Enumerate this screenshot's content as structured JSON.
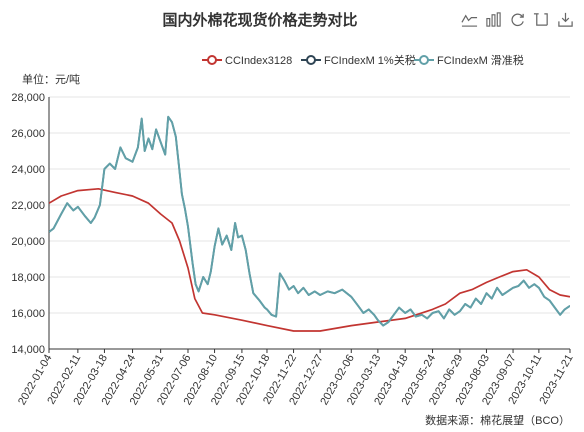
{
  "toolbox": [
    {
      "name": "line-chart-icon"
    },
    {
      "name": "bar-chart-icon"
    },
    {
      "name": "restore-icon"
    },
    {
      "name": "data-view-icon"
    },
    {
      "name": "save-image-icon"
    }
  ],
  "colors": {
    "s1": "#c23531",
    "s2": "#2f4554",
    "s3": "#61a0a8",
    "grid": "#e8e8e8"
  },
  "chart_data": {
    "type": "line",
    "title": "国内外棉花现货价格走势对比",
    "unit_label": "单位：元/吨",
    "source": "数据来源：棉花展望（BCO）",
    "legend_position": "top-right",
    "grid": true,
    "xlabel": "",
    "ylabel": "",
    "ylim": [
      14000,
      28000
    ],
    "y_ticks": [
      14000,
      16000,
      18000,
      20000,
      22000,
      24000,
      26000,
      28000
    ],
    "y_tick_labels": [
      "14,000",
      "16,000",
      "18,000",
      "20,000",
      "22,000",
      "24,000",
      "26,000",
      "28,000"
    ],
    "x_range": [
      "2022-01-04",
      "2023-11-21"
    ],
    "x_ticks": [
      "2022-01-04",
      "2022-02-11",
      "2022-03-18",
      "2022-04-24",
      "2022-05-31",
      "2022-07-06",
      "2022-08-10",
      "2022-09-15",
      "2022-10-18",
      "2022-11-22",
      "2022-12-27",
      "2023-02-06",
      "2023-03-13",
      "2023-04-18",
      "2023-05-24",
      "2023-06-29",
      "2023-08-03",
      "2023-09-07",
      "2023-10-11",
      "2023-11-21"
    ],
    "series": [
      {
        "name": "CCIndex3128",
        "color": "#c23531",
        "points": [
          [
            "2022-01-04",
            22100
          ],
          [
            "2022-01-20",
            22500
          ],
          [
            "2022-02-11",
            22800
          ],
          [
            "2022-03-10",
            22900
          ],
          [
            "2022-04-01",
            22700
          ],
          [
            "2022-04-24",
            22500
          ],
          [
            "2022-05-15",
            22100
          ],
          [
            "2022-05-31",
            21500
          ],
          [
            "2022-06-15",
            21000
          ],
          [
            "2022-06-25",
            20000
          ],
          [
            "2022-07-06",
            18500
          ],
          [
            "2022-07-15",
            16800
          ],
          [
            "2022-07-25",
            16000
          ],
          [
            "2022-08-10",
            15900
          ],
          [
            "2022-09-15",
            15600
          ],
          [
            "2022-10-18",
            15300
          ],
          [
            "2022-11-22",
            15000
          ],
          [
            "2022-12-27",
            15000
          ],
          [
            "2023-02-06",
            15300
          ],
          [
            "2023-03-13",
            15500
          ],
          [
            "2023-04-18",
            15700
          ],
          [
            "2023-05-24",
            16200
          ],
          [
            "2023-06-10",
            16500
          ],
          [
            "2023-06-29",
            17100
          ],
          [
            "2023-07-15",
            17300
          ],
          [
            "2023-08-03",
            17700
          ],
          [
            "2023-08-20",
            18000
          ],
          [
            "2023-09-07",
            18300
          ],
          [
            "2023-09-25",
            18400
          ],
          [
            "2023-10-11",
            18000
          ],
          [
            "2023-10-25",
            17300
          ],
          [
            "2023-11-08",
            17000
          ],
          [
            "2023-11-21",
            16900
          ]
        ]
      },
      {
        "name": "FCIndexM 1%关税",
        "color": "#2f4554",
        "points": [
          [
            "2022-01-04",
            20500
          ],
          [
            "2022-01-10",
            20700
          ],
          [
            "2022-01-20",
            21500
          ],
          [
            "2022-01-28",
            22100
          ],
          [
            "2022-02-05",
            21700
          ],
          [
            "2022-02-11",
            21900
          ],
          [
            "2022-02-20",
            21400
          ],
          [
            "2022-02-28",
            21000
          ],
          [
            "2022-03-05",
            21300
          ],
          [
            "2022-03-12",
            22000
          ],
          [
            "2022-03-18",
            24000
          ],
          [
            "2022-03-25",
            24300
          ],
          [
            "2022-04-01",
            24000
          ],
          [
            "2022-04-08",
            25200
          ],
          [
            "2022-04-15",
            24600
          ],
          [
            "2022-04-24",
            24400
          ],
          [
            "2022-05-01",
            25200
          ],
          [
            "2022-05-06",
            26800
          ],
          [
            "2022-05-10",
            25000
          ],
          [
            "2022-05-15",
            25700
          ],
          [
            "2022-05-20",
            25100
          ],
          [
            "2022-05-25",
            26200
          ],
          [
            "2022-05-31",
            25500
          ],
          [
            "2022-06-06",
            24800
          ],
          [
            "2022-06-10",
            26900
          ],
          [
            "2022-06-15",
            26600
          ],
          [
            "2022-06-20",
            25800
          ],
          [
            "2022-06-24",
            24200
          ],
          [
            "2022-06-28",
            22600
          ],
          [
            "2022-07-02",
            21800
          ],
          [
            "2022-07-06",
            20800
          ],
          [
            "2022-07-12",
            18800
          ],
          [
            "2022-07-16",
            17600
          ],
          [
            "2022-07-20",
            17200
          ],
          [
            "2022-07-26",
            18000
          ],
          [
            "2022-08-01",
            17600
          ],
          [
            "2022-08-05",
            18300
          ],
          [
            "2022-08-10",
            19700
          ],
          [
            "2022-08-15",
            20700
          ],
          [
            "2022-08-20",
            19800
          ],
          [
            "2022-08-26",
            20300
          ],
          [
            "2022-09-01",
            19500
          ],
          [
            "2022-09-06",
            21000
          ],
          [
            "2022-09-10",
            20200
          ],
          [
            "2022-09-15",
            20300
          ],
          [
            "2022-09-20",
            19500
          ],
          [
            "2022-09-25",
            18200
          ],
          [
            "2022-09-30",
            17100
          ],
          [
            "2022-10-08",
            16700
          ],
          [
            "2022-10-15",
            16300
          ],
          [
            "2022-10-18",
            16200
          ],
          [
            "2022-10-24",
            15900
          ],
          [
            "2022-10-30",
            15800
          ],
          [
            "2022-11-04",
            18200
          ],
          [
            "2022-11-10",
            17800
          ],
          [
            "2022-11-16",
            17300
          ],
          [
            "2022-11-22",
            17500
          ],
          [
            "2022-11-28",
            17100
          ],
          [
            "2022-12-05",
            17400
          ],
          [
            "2022-12-12",
            17000
          ],
          [
            "2022-12-20",
            17200
          ],
          [
            "2022-12-27",
            17000
          ],
          [
            "2023-01-06",
            17200
          ],
          [
            "2023-01-15",
            17100
          ],
          [
            "2023-01-25",
            17300
          ],
          [
            "2023-02-06",
            16900
          ],
          [
            "2023-02-15",
            16400
          ],
          [
            "2023-02-22",
            16000
          ],
          [
            "2023-03-01",
            16200
          ],
          [
            "2023-03-08",
            15900
          ],
          [
            "2023-03-13",
            15600
          ],
          [
            "2023-03-20",
            15300
          ],
          [
            "2023-03-27",
            15500
          ],
          [
            "2023-04-03",
            15900
          ],
          [
            "2023-04-10",
            16300
          ],
          [
            "2023-04-18",
            16000
          ],
          [
            "2023-04-25",
            16200
          ],
          [
            "2023-05-02",
            15800
          ],
          [
            "2023-05-10",
            15900
          ],
          [
            "2023-05-17",
            15700
          ],
          [
            "2023-05-24",
            16000
          ],
          [
            "2023-06-01",
            16100
          ],
          [
            "2023-06-08",
            15700
          ],
          [
            "2023-06-15",
            16200
          ],
          [
            "2023-06-22",
            15900
          ],
          [
            "2023-06-29",
            16100
          ],
          [
            "2023-07-06",
            16500
          ],
          [
            "2023-07-13",
            16300
          ],
          [
            "2023-07-20",
            16800
          ],
          [
            "2023-07-27",
            16500
          ],
          [
            "2023-08-03",
            17100
          ],
          [
            "2023-08-10",
            16800
          ],
          [
            "2023-08-17",
            17400
          ],
          [
            "2023-08-24",
            17000
          ],
          [
            "2023-08-31",
            17200
          ],
          [
            "2023-09-07",
            17400
          ],
          [
            "2023-09-14",
            17500
          ],
          [
            "2023-09-21",
            17800
          ],
          [
            "2023-09-28",
            17400
          ],
          [
            "2023-10-05",
            17600
          ],
          [
            "2023-10-11",
            17400
          ],
          [
            "2023-10-18",
            16900
          ],
          [
            "2023-10-25",
            16700
          ],
          [
            "2023-11-01",
            16300
          ],
          [
            "2023-11-08",
            15900
          ],
          [
            "2023-11-14",
            16200
          ],
          [
            "2023-11-21",
            16400
          ]
        ]
      },
      {
        "name": "FCIndexM 滑准税",
        "color": "#61a0a8",
        "points": [
          [
            "2022-01-04",
            20500
          ],
          [
            "2022-01-10",
            20700
          ],
          [
            "2022-01-20",
            21500
          ],
          [
            "2022-01-28",
            22100
          ],
          [
            "2022-02-05",
            21700
          ],
          [
            "2022-02-11",
            21900
          ],
          [
            "2022-02-20",
            21400
          ],
          [
            "2022-02-28",
            21000
          ],
          [
            "2022-03-05",
            21300
          ],
          [
            "2022-03-12",
            22000
          ],
          [
            "2022-03-18",
            24000
          ],
          [
            "2022-03-25",
            24300
          ],
          [
            "2022-04-01",
            24000
          ],
          [
            "2022-04-08",
            25200
          ],
          [
            "2022-04-15",
            24600
          ],
          [
            "2022-04-24",
            24400
          ],
          [
            "2022-05-01",
            25200
          ],
          [
            "2022-05-06",
            26800
          ],
          [
            "2022-05-10",
            25000
          ],
          [
            "2022-05-15",
            25700
          ],
          [
            "2022-05-20",
            25100
          ],
          [
            "2022-05-25",
            26200
          ],
          [
            "2022-05-31",
            25500
          ],
          [
            "2022-06-06",
            24800
          ],
          [
            "2022-06-10",
            26900
          ],
          [
            "2022-06-15",
            26600
          ],
          [
            "2022-06-20",
            25800
          ],
          [
            "2022-06-24",
            24200
          ],
          [
            "2022-06-28",
            22600
          ],
          [
            "2022-07-02",
            21800
          ],
          [
            "2022-07-06",
            20800
          ],
          [
            "2022-07-12",
            18800
          ],
          [
            "2022-07-16",
            17600
          ],
          [
            "2022-07-20",
            17200
          ],
          [
            "2022-07-26",
            18000
          ],
          [
            "2022-08-01",
            17600
          ],
          [
            "2022-08-05",
            18300
          ],
          [
            "2022-08-10",
            19700
          ],
          [
            "2022-08-15",
            20700
          ],
          [
            "2022-08-20",
            19800
          ],
          [
            "2022-08-26",
            20300
          ],
          [
            "2022-09-01",
            19500
          ],
          [
            "2022-09-06",
            21000
          ],
          [
            "2022-09-10",
            20200
          ],
          [
            "2022-09-15",
            20300
          ],
          [
            "2022-09-20",
            19500
          ],
          [
            "2022-09-25",
            18200
          ],
          [
            "2022-09-30",
            17100
          ],
          [
            "2022-10-08",
            16700
          ],
          [
            "2022-10-15",
            16300
          ],
          [
            "2022-10-18",
            16200
          ],
          [
            "2022-10-24",
            15900
          ],
          [
            "2022-10-30",
            15800
          ],
          [
            "2022-11-04",
            18200
          ],
          [
            "2022-11-10",
            17800
          ],
          [
            "2022-11-16",
            17300
          ],
          [
            "2022-11-22",
            17500
          ],
          [
            "2022-11-28",
            17100
          ],
          [
            "2022-12-05",
            17400
          ],
          [
            "2022-12-12",
            17000
          ],
          [
            "2022-12-20",
            17200
          ],
          [
            "2022-12-27",
            17000
          ],
          [
            "2023-01-06",
            17200
          ],
          [
            "2023-01-15",
            17100
          ],
          [
            "2023-01-25",
            17300
          ],
          [
            "2023-02-06",
            16900
          ],
          [
            "2023-02-15",
            16400
          ],
          [
            "2023-02-22",
            16000
          ],
          [
            "2023-03-01",
            16200
          ],
          [
            "2023-03-08",
            15900
          ],
          [
            "2023-03-13",
            15600
          ],
          [
            "2023-03-20",
            15300
          ],
          [
            "2023-03-27",
            15500
          ],
          [
            "2023-04-03",
            15900
          ],
          [
            "2023-04-10",
            16300
          ],
          [
            "2023-04-18",
            16000
          ],
          [
            "2023-04-25",
            16200
          ],
          [
            "2023-05-02",
            15800
          ],
          [
            "2023-05-10",
            15900
          ],
          [
            "2023-05-17",
            15700
          ],
          [
            "2023-05-24",
            16000
          ],
          [
            "2023-06-01",
            16100
          ],
          [
            "2023-06-08",
            15700
          ],
          [
            "2023-06-15",
            16200
          ],
          [
            "2023-06-22",
            15900
          ],
          [
            "2023-06-29",
            16100
          ],
          [
            "2023-07-06",
            16500
          ],
          [
            "2023-07-13",
            16300
          ],
          [
            "2023-07-20",
            16800
          ],
          [
            "2023-07-27",
            16500
          ],
          [
            "2023-08-03",
            17100
          ],
          [
            "2023-08-10",
            16800
          ],
          [
            "2023-08-17",
            17400
          ],
          [
            "2023-08-24",
            17000
          ],
          [
            "2023-08-31",
            17200
          ],
          [
            "2023-09-07",
            17400
          ],
          [
            "2023-09-14",
            17500
          ],
          [
            "2023-09-21",
            17800
          ],
          [
            "2023-09-28",
            17400
          ],
          [
            "2023-10-05",
            17600
          ],
          [
            "2023-10-11",
            17400
          ],
          [
            "2023-10-18",
            16900
          ],
          [
            "2023-10-25",
            16700
          ],
          [
            "2023-11-01",
            16300
          ],
          [
            "2023-11-08",
            15900
          ],
          [
            "2023-11-14",
            16200
          ],
          [
            "2023-11-21",
            16400
          ]
        ]
      }
    ]
  }
}
